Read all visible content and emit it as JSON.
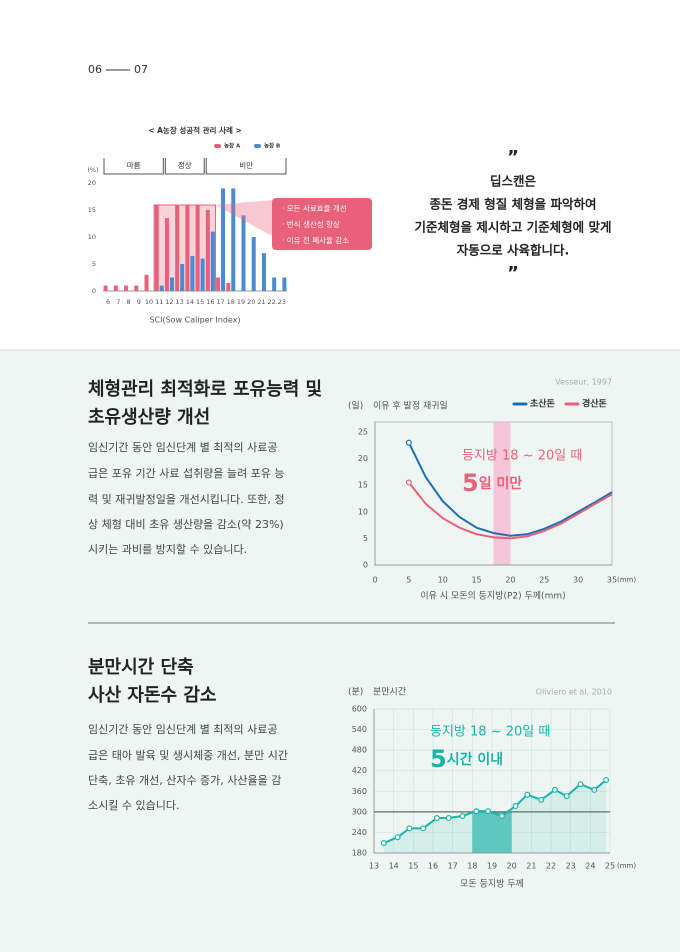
{
  "header": {
    "page_left": "06",
    "page_right": "07"
  },
  "quote": {
    "open": "”",
    "lines": [
      "딥스캔은",
      "종돈 경제 형질 체형을 파악하여",
      "기준체형을 제시하고 기준체형에 맞게",
      "자동으로 사육합니다."
    ],
    "close": "”"
  },
  "sections": [
    {
      "title_lines": [
        "체형관리 최적화로 포유능력 및",
        "초유생산량 개선"
      ],
      "body_lines": [
        "임신기간 동안 임신단계 별 최적의 사료공",
        "급은 포유 기간 사료 섭취량을 늘려 포유 능",
        "력 및 재귀발정일을 개선시킵니다. 또한, 정",
        "상 체형 대비 초유 생산량을 감소(약 23%)",
        "시키는 과비를 방지할 수 있습니다."
      ]
    },
    {
      "title_lines": [
        "분만시간 단축",
        "사산 자돈수 감소"
      ],
      "body_lines": [
        "임신기간 동안 임신단계 별 최적의 사료공",
        "급은 태아 발육 및 생시체중 개선, 분만 시간",
        "단축, 초유 개선, 산자수 증가, 사산율을 감",
        "소시킬 수 있습니다."
      ]
    }
  ],
  "chart_data": [
    {
      "type": "bar",
      "title": "< A농장 성공적 관리 사례 >",
      "y_unit": "(%)",
      "x_label": "SCI(Sow Caliper Index)",
      "x": [
        6,
        7,
        8,
        9,
        10,
        11,
        12,
        13,
        14,
        15,
        16,
        17,
        18,
        19,
        20,
        21,
        22,
        23
      ],
      "xlim": [
        5.5,
        23.5
      ],
      "xticks": [
        6,
        7,
        8,
        9,
        10,
        11,
        12,
        13,
        14,
        15,
        16,
        17,
        18,
        19,
        20,
        21,
        22,
        23
      ],
      "ylim": [
        0,
        20
      ],
      "yticks": [
        0,
        5,
        10,
        15,
        20
      ],
      "series": [
        {
          "name": "농장 A",
          "color": "#e8607a",
          "values": [
            1,
            1,
            1,
            1,
            3,
            16,
            13.5,
            16,
            16,
            16,
            15,
            2.5,
            1.5,
            0,
            0,
            0,
            0,
            0
          ]
        },
        {
          "name": "농장 B",
          "color": "#4a8ad0",
          "values": [
            0,
            0,
            0,
            0,
            0,
            1,
            2.5,
            5,
            6.5,
            6,
            11,
            19,
            19,
            14,
            10,
            7,
            2.5,
            2.5
          ]
        }
      ],
      "regions": [
        {
          "label": "마름",
          "range": [
            5.5,
            11.5
          ]
        },
        {
          "label": "정상",
          "range": [
            11.5,
            15.5
          ]
        },
        {
          "label": "비만",
          "range": [
            15.5,
            23.5
          ]
        }
      ],
      "highlight": [
        10.5,
        16.5
      ],
      "annotations": [
        "· 모든 사료효율 개선",
        "· 번식 생산성 향상",
        "· 이유 전 폐사율 감소"
      ]
    },
    {
      "type": "line",
      "y_unit": "(일)",
      "y_label": "이유 후 발정 재귀일",
      "source": "Vesseur, 1997",
      "x_label": "이유 시 모돈의 등지방(P2) 두께(mm)",
      "x_unit": "(mm)",
      "x": [
        5,
        7.5,
        10,
        12.5,
        15,
        17.5,
        20,
        22.5,
        25,
        27.5,
        30,
        32.5,
        35
      ],
      "xlim": [
        0,
        35
      ],
      "xticks": [
        0,
        5,
        10,
        15,
        20,
        25,
        30,
        35
      ],
      "ylim": [
        0,
        25
      ],
      "yticks": [
        0,
        5,
        10,
        15,
        20,
        25
      ],
      "series": [
        {
          "name": "초산돈",
          "color": "#1f6fb2",
          "values": [
            23,
            16.5,
            12,
            9,
            7,
            6,
            5.5,
            5.8,
            6.8,
            8.2,
            10,
            11.8,
            13.7
          ]
        },
        {
          "name": "경산돈",
          "color": "#e8607a",
          "values": [
            15.5,
            11.5,
            8.8,
            7,
            5.8,
            5.2,
            5,
            5.4,
            6.4,
            7.8,
            9.6,
            11.5,
            13.3
          ]
        }
      ],
      "start_marker": true,
      "highlight": [
        17.5,
        20
      ],
      "highlight_color": "#f7bcd2",
      "annotation": {
        "text": "등지방 18 ~ 20일 때",
        "big": "5",
        "rest": "일 미만",
        "color": "#e8607a"
      }
    },
    {
      "type": "line",
      "y_unit": "(분)",
      "y_label": "분만시간",
      "source": "Oliviero et al, 2010",
      "x_label": "모돈 등지방 두께",
      "x_unit": "(mm)",
      "x": [
        13.5,
        14.2,
        14.8,
        15.5,
        16.2,
        16.8,
        17.5,
        18.2,
        18.8,
        19.5,
        20.2,
        20.8,
        21.5,
        22.2,
        22.8,
        23.5,
        24.2,
        24.8
      ],
      "xlim": [
        13,
        25
      ],
      "xticks": [
        13,
        14,
        15,
        16,
        17,
        18,
        19,
        20,
        21,
        22,
        23,
        24,
        25
      ],
      "ylim": [
        180,
        600
      ],
      "yticks": [
        180,
        240,
        300,
        360,
        420,
        480,
        540,
        600
      ],
      "series": [
        {
          "color": "#1db3a8",
          "values": [
            209,
            226,
            252,
            252,
            282,
            282,
            288,
            302,
            302,
            288,
            317,
            350,
            335,
            364,
            346,
            381,
            364,
            393
          ]
        }
      ],
      "markers": true,
      "area": true,
      "grid": true,
      "reference_line": 300,
      "highlight": [
        18,
        20
      ],
      "highlight_color": "#4fc2bb",
      "annotation": {
        "text": "등지방 18 ~ 20일 때",
        "big": "5",
        "rest": "시간 이내",
        "color": "#1db3a8"
      }
    }
  ]
}
